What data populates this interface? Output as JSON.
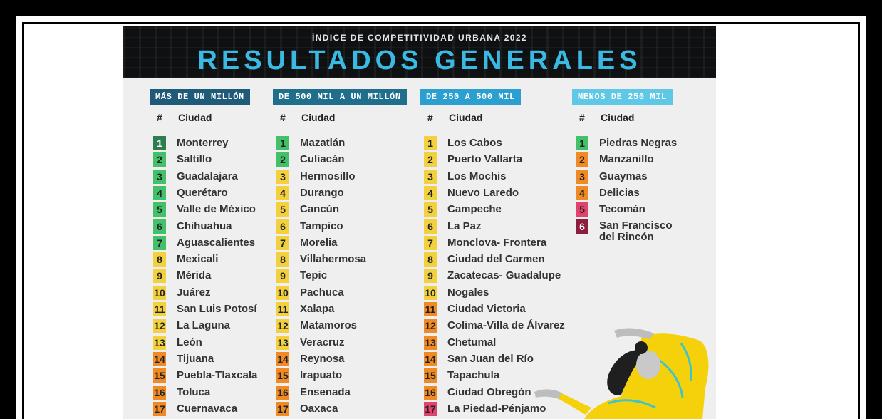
{
  "header": {
    "subtitle": "ÍNDICE DE COMPETITIVIDAD URBANA 2022",
    "title": "RESULTADOS GENERALES"
  },
  "colors": {
    "dark_green": "#2e7d4f",
    "green": "#43c06a",
    "yellow": "#f3d03e",
    "orange": "#f08a24",
    "pink": "#e0446c",
    "maroon": "#8c1d3c",
    "title_blue": "#3ab9e3"
  },
  "columns": [
    {
      "heading": "MÁS DE UN MILLÓN",
      "heading_color": "#1f5a78",
      "rank_header": "#",
      "city_header": "Ciudad",
      "rows": [
        {
          "rank": "1",
          "city": "Monterrey",
          "color": "dark_green"
        },
        {
          "rank": "2",
          "city": "Saltillo",
          "color": "green"
        },
        {
          "rank": "3",
          "city": "Guadalajara",
          "color": "green"
        },
        {
          "rank": "4",
          "city": "Querétaro",
          "color": "green"
        },
        {
          "rank": "5",
          "city": "Valle de México",
          "color": "green"
        },
        {
          "rank": "6",
          "city": "Chihuahua",
          "color": "green"
        },
        {
          "rank": "7",
          "city": "Aguascalientes",
          "color": "green"
        },
        {
          "rank": "8",
          "city": "Mexicali",
          "color": "yellow"
        },
        {
          "rank": "9",
          "city": "Mérida",
          "color": "yellow"
        },
        {
          "rank": "10",
          "city": "Juárez",
          "color": "yellow"
        },
        {
          "rank": "11",
          "city": "San Luis Potosí",
          "color": "yellow"
        },
        {
          "rank": "12",
          "city": "La Laguna",
          "color": "yellow"
        },
        {
          "rank": "13",
          "city": "León",
          "color": "yellow"
        },
        {
          "rank": "14",
          "city": "Tijuana",
          "color": "orange"
        },
        {
          "rank": "15",
          "city": "Puebla-Tlaxcala",
          "color": "orange"
        },
        {
          "rank": "16",
          "city": "Toluca",
          "color": "orange"
        },
        {
          "rank": "17",
          "city": "Cuernavaca",
          "color": "orange"
        }
      ]
    },
    {
      "heading": "DE 500 MIL A UN MILLÓN",
      "heading_color": "#1f6e8c",
      "rank_header": "#",
      "city_header": "Ciudad",
      "rows": [
        {
          "rank": "1",
          "city": "Mazatlán",
          "color": "green"
        },
        {
          "rank": "2",
          "city": "Culiacán",
          "color": "green"
        },
        {
          "rank": "3",
          "city": "Hermosillo",
          "color": "yellow"
        },
        {
          "rank": "4",
          "city": "Durango",
          "color": "yellow"
        },
        {
          "rank": "5",
          "city": "Cancún",
          "color": "yellow"
        },
        {
          "rank": "6",
          "city": "Tampico",
          "color": "yellow"
        },
        {
          "rank": "7",
          "city": "Morelia",
          "color": "yellow"
        },
        {
          "rank": "8",
          "city": "Villahermosa",
          "color": "yellow"
        },
        {
          "rank": "9",
          "city": "Tepic",
          "color": "yellow"
        },
        {
          "rank": "10",
          "city": "Pachuca",
          "color": "yellow"
        },
        {
          "rank": "11",
          "city": "Xalapa",
          "color": "yellow"
        },
        {
          "rank": "12",
          "city": "Matamoros",
          "color": "yellow"
        },
        {
          "rank": "13",
          "city": "Veracruz",
          "color": "yellow"
        },
        {
          "rank": "14",
          "city": "Reynosa",
          "color": "orange"
        },
        {
          "rank": "15",
          "city": "Irapuato",
          "color": "orange"
        },
        {
          "rank": "16",
          "city": "Ensenada",
          "color": "orange"
        },
        {
          "rank": "17",
          "city": "Oaxaca",
          "color": "orange"
        }
      ]
    },
    {
      "heading": "DE 250 A 500 MIL",
      "heading_color": "#2a9fd0",
      "rank_header": "#",
      "city_header": "Ciudad",
      "rows": [
        {
          "rank": "1",
          "city": "Los Cabos",
          "color": "yellow"
        },
        {
          "rank": "2",
          "city": "Puerto Vallarta",
          "color": "yellow"
        },
        {
          "rank": "3",
          "city": "Los Mochis",
          "color": "yellow"
        },
        {
          "rank": "4",
          "city": "Nuevo Laredo",
          "color": "yellow"
        },
        {
          "rank": "5",
          "city": "Campeche",
          "color": "yellow"
        },
        {
          "rank": "6",
          "city": "La Paz",
          "color": "yellow"
        },
        {
          "rank": "7",
          "city": "Monclova- Frontera",
          "color": "yellow"
        },
        {
          "rank": "8",
          "city": "Ciudad del Carmen",
          "color": "yellow"
        },
        {
          "rank": "9",
          "city": "Zacatecas- Guadalupe",
          "color": "yellow"
        },
        {
          "rank": "10",
          "city": "Nogales",
          "color": "yellow"
        },
        {
          "rank": "11",
          "city": "Ciudad Victoria",
          "color": "orange"
        },
        {
          "rank": "12",
          "city": "Colima-Villa de Álvarez",
          "color": "orange"
        },
        {
          "rank": "13",
          "city": "Chetumal",
          "color": "orange"
        },
        {
          "rank": "14",
          "city": "San Juan del Río",
          "color": "orange"
        },
        {
          "rank": "15",
          "city": "Tapachula",
          "color": "orange"
        },
        {
          "rank": "16",
          "city": "Ciudad Obregón",
          "color": "orange"
        },
        {
          "rank": "17",
          "city": "La Piedad-Pénjamo",
          "color": "pink"
        }
      ]
    },
    {
      "heading": "MENOS DE 250 MIL",
      "heading_color": "#5fc8e6",
      "rank_header": "#",
      "city_header": "Ciudad",
      "rows": [
        {
          "rank": "1",
          "city": "Piedras Negras",
          "color": "green"
        },
        {
          "rank": "2",
          "city": "Manzanillo",
          "color": "orange"
        },
        {
          "rank": "3",
          "city": "Guaymas",
          "color": "orange"
        },
        {
          "rank": "4",
          "city": "Delicias",
          "color": "orange"
        },
        {
          "rank": "5",
          "city": "Tecomán",
          "color": "pink"
        },
        {
          "rank": "6",
          "city": "San Francisco del Rincón",
          "color": "maroon"
        }
      ]
    }
  ]
}
